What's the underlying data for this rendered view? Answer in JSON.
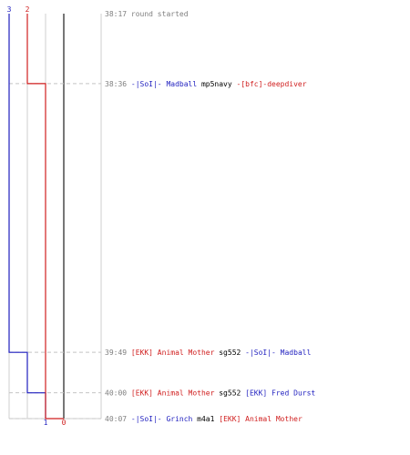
{
  "chart_data": {
    "type": "line",
    "title": "",
    "teams": [
      {
        "name": "blue",
        "color": "#1f1fbf",
        "start": 3,
        "end": 1
      },
      {
        "name": "red",
        "color": "#d01f1f",
        "start": 2,
        "end": 0
      }
    ],
    "lanes": [
      0,
      1,
      2,
      3
    ],
    "ylim": [
      "38:17",
      "40:07"
    ],
    "events": [
      {
        "time": "38:17",
        "tokens": [
          {
            "t": "round started",
            "c": "#7f7f7f"
          }
        ]
      },
      {
        "time": "38:36",
        "tokens": [
          {
            "t": "-|SoI|- Madball",
            "c": "#1f1fbf"
          },
          {
            "t": "mp5navy",
            "c": "#000000"
          },
          {
            "t": "-[bfc]-deepdiver",
            "c": "#d01f1f"
          }
        ]
      },
      {
        "time": "39:49",
        "tokens": [
          {
            "t": "[EKK] Animal Mother",
            "c": "#d01f1f"
          },
          {
            "t": "sg552",
            "c": "#000000"
          },
          {
            "t": "-|SoI|- Madball",
            "c": "#1f1fbf"
          }
        ]
      },
      {
        "time": "40:00",
        "tokens": [
          {
            "t": "[EKK] Animal Mother",
            "c": "#d01f1f"
          },
          {
            "t": "sg552",
            "c": "#000000"
          },
          {
            "t": "[EKK] Fred Durst",
            "c": "#1f1fbf"
          }
        ]
      },
      {
        "time": "40:07",
        "tokens": [
          {
            "t": "-|SoI|- Grinch",
            "c": "#1f1fbf"
          },
          {
            "t": "m4a1",
            "c": "#000000"
          },
          {
            "t": "[EKK] Animal Mother",
            "c": "#d01f1f"
          }
        ]
      }
    ],
    "series": [
      {
        "name": "blue",
        "color": "#1f1fbf",
        "points": [
          [
            "38:17",
            3
          ],
          [
            "39:49",
            3
          ],
          [
            "39:49",
            2
          ],
          [
            "40:00",
            2
          ],
          [
            "40:00",
            1
          ],
          [
            "40:07",
            1
          ]
        ]
      },
      {
        "name": "red",
        "color": "#d01f1f",
        "points": [
          [
            "38:17",
            2
          ],
          [
            "38:36",
            2
          ],
          [
            "38:36",
            1
          ],
          [
            "40:07",
            1
          ],
          [
            "40:07",
            0
          ]
        ]
      }
    ],
    "time_color": "#7f7f7f"
  }
}
